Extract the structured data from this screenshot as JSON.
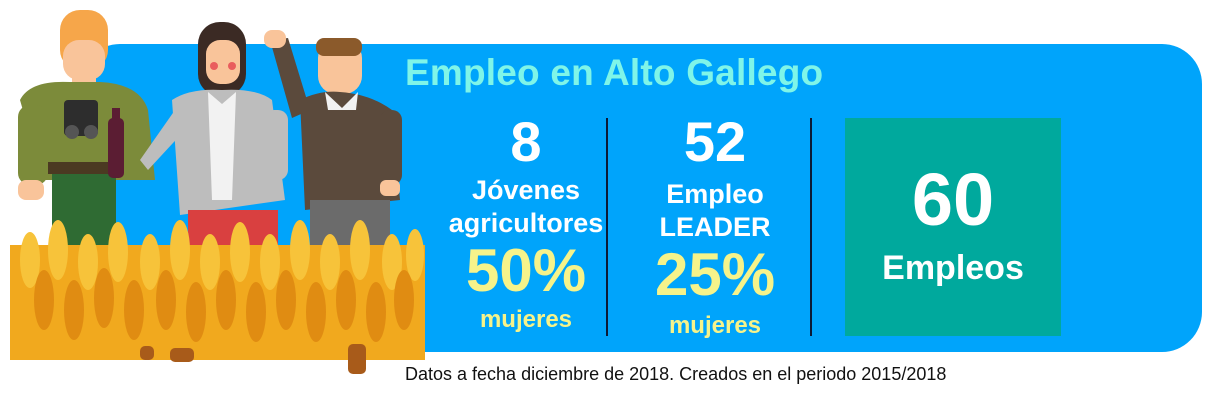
{
  "title": "Empleo en Alto Gallego",
  "stats": [
    {
      "number": "8",
      "label_line1": "Jóvenes",
      "label_line2": "agricultores",
      "percent": "50%",
      "percent_label": "mujeres"
    },
    {
      "number": "52",
      "label_line1": "Empleo",
      "label_line2": "LEADER",
      "percent": "25%",
      "percent_label": "mujeres"
    }
  ],
  "total": {
    "number": "60",
    "label": "Empleos"
  },
  "footnote": "Datos a fecha diciembre de 2018. Creados en el periodo 2015/2018",
  "colors": {
    "banner": "#00a4fb",
    "title": "#7ff5e8",
    "highlight": "#f6f38a",
    "total_box": "#00a99d"
  },
  "illustration_icons": [
    "hiker-man-icon",
    "woman-with-wine-icon",
    "waving-man-icon",
    "wheat-field-icon"
  ]
}
